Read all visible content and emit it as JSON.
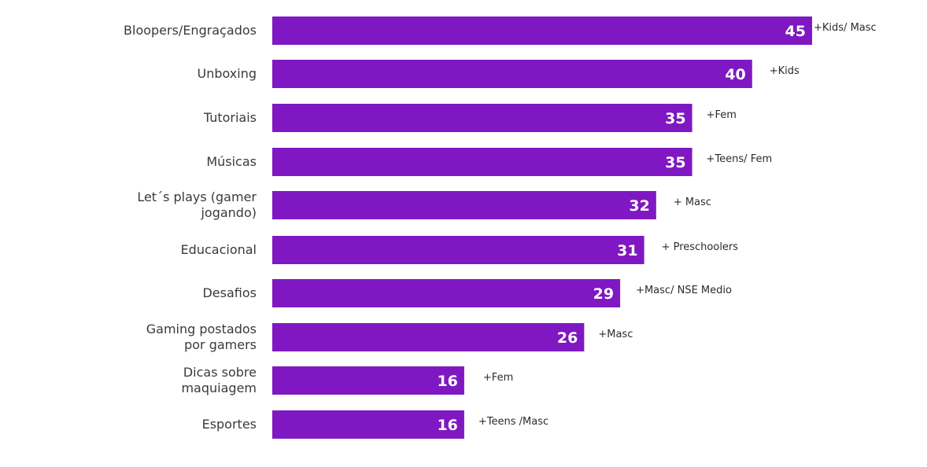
{
  "chart_data": {
    "type": "bar",
    "orientation": "horizontal",
    "categories": [
      [
        "Bloopers/Engraçados"
      ],
      [
        "Unboxing"
      ],
      [
        "Tutoriais"
      ],
      [
        "Músicas"
      ],
      [
        "Let´s plays (gamer",
        "jogando)"
      ],
      [
        "Educacional"
      ],
      [
        "Desafios"
      ],
      [
        "Gaming postados",
        "por gamers"
      ],
      [
        "Dicas sobre",
        "maquiagem"
      ],
      [
        "Esportes"
      ]
    ],
    "values": [
      45,
      40,
      35,
      35,
      32,
      31,
      29,
      26,
      16,
      16
    ],
    "annotations": [
      "+Kids/ Masc",
      "+Kids",
      "+Fem",
      "+Teens/ Fem",
      "+ Masc",
      "+ Preschoolers",
      "+Masc/ NSE Medio",
      "+Masc",
      "+Fem",
      "+Teens /Masc"
    ],
    "xlim": [
      0,
      45
    ],
    "bar_color": "#7f18c2",
    "value_label_color": "#ffffff",
    "grid": false,
    "legend": "none"
  }
}
